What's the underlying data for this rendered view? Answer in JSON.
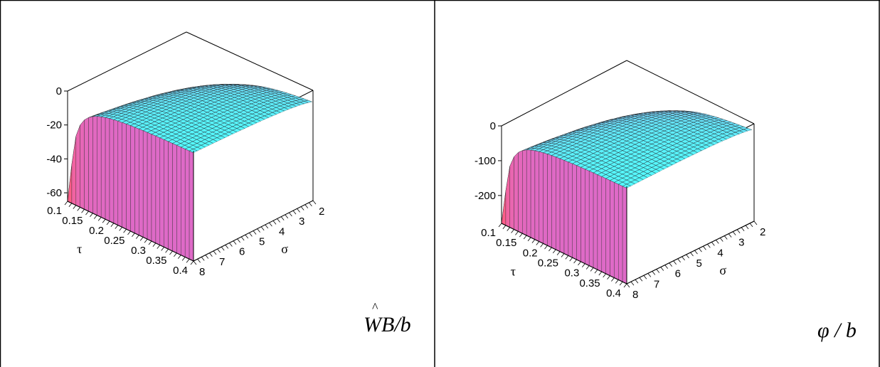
{
  "chart_data": [
    {
      "type": "surface",
      "caption": "WB/b",
      "x": {
        "label": "τ",
        "range": [
          0.1,
          0.4
        ],
        "ticks": [
          "0.1",
          "0.15",
          "0.2",
          "0.25",
          "0.3",
          "0.35",
          "0.4"
        ]
      },
      "y": {
        "label": "σ",
        "range": [
          2,
          8
        ],
        "ticks": [
          "2",
          "3",
          "4",
          "5",
          "6",
          "7",
          "8"
        ]
      },
      "z": {
        "range": [
          -65,
          0
        ],
        "ticks": [
          "0",
          "-20",
          "-40",
          "-60"
        ]
      },
      "grid": false,
      "colors": {
        "low": "#ff5a78",
        "mid": "#c86ee6",
        "high": "#50ffff"
      }
    },
    {
      "type": "surface",
      "caption": "φ / b",
      "x": {
        "label": "τ",
        "range": [
          0.1,
          0.4
        ],
        "ticks": [
          "0.1",
          "0.15",
          "0.2",
          "0.25",
          "0.3",
          "0.35",
          "0.4"
        ]
      },
      "y": {
        "label": "σ",
        "range": [
          2,
          8
        ],
        "ticks": [
          "2",
          "3",
          "4",
          "5",
          "6",
          "7",
          "8"
        ]
      },
      "z": {
        "range": [
          -280,
          0
        ],
        "ticks": [
          "0",
          "-100",
          "-200"
        ]
      },
      "grid": false,
      "colors": {
        "low": "#ff5a78",
        "mid": "#c86ee6",
        "high": "#50ffff"
      }
    }
  ]
}
